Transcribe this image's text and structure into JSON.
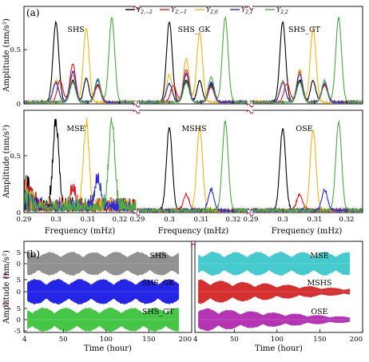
{
  "figure": {
    "panel_a_label": "(a)",
    "panel_b_label": "(b)"
  },
  "chart_data": [
    {
      "type": "line",
      "panel": "(a) top",
      "ylabel": "Amplitude (nm/s²)",
      "ylim": [
        0,
        0.9
      ],
      "yticks": [
        "0",
        "0.5"
      ],
      "legend": [
        "Y2,−2",
        "Y2,−1",
        "Y2,0",
        "Y2,1",
        "Y2,2"
      ],
      "legend_placement": "top",
      "series_colors": [
        "#000000",
        "#e8161c",
        "#f2b418",
        "#2a2ad8",
        "#4ea646"
      ],
      "subplots": [
        {
          "title": "SHS",
          "peaks": {
            "Y2,−2": [
              0.74,
              0.22
            ],
            "Y2,−1": [
              0.2,
              0.35,
              0.15
            ],
            "Y2,0": [
              0.68,
              0.25,
              0.2
            ],
            "Y2,1": [
              0.18,
              0.28,
              0.2
            ],
            "Y2,2": [
              0.78,
              0.22
            ]
          }
        },
        {
          "title": "SHS_GK",
          "peaks": {
            "Y2,−2": [
              0.74,
              0.2
            ],
            "Y2,−1": [
              0.15,
              0.3,
              0.14
            ],
            "Y2,0": [
              0.64,
              0.4,
              0.25
            ],
            "Y2,1": [
              0.17,
              0.26,
              0.18
            ],
            "Y2,2": [
              0.78,
              0.23
            ]
          }
        },
        {
          "title": "SHS_GT",
          "peaks": {
            "Y2,−2": [
              0.74,
              0.2
            ],
            "Y2,−1": [
              0.17,
              0.28,
              0.16
            ],
            "Y2,0": [
              0.68,
              0.3,
              0.2
            ],
            "Y2,1": [
              0.18,
              0.26,
              0.18
            ],
            "Y2,2": [
              0.78,
              0.2
            ]
          }
        }
      ]
    },
    {
      "type": "line",
      "panel": "(a) bottom",
      "ylabel": "Amplitude (nm/s²)",
      "xlabel": "Frequency (mHz)",
      "ylim": [
        0,
        0.9
      ],
      "yticks": [
        "0",
        "0.5"
      ],
      "xticks": [
        "0.29",
        "0.3",
        "0.31",
        "0.32"
      ],
      "x_range": [
        0.29,
        0.325
      ],
      "subplots": [
        {
          "title": "MSE",
          "peaks": {
            "Y2,−2": 0.75,
            "Y2,−1": 0.16,
            "Y2,0": 0.74,
            "Y2,1": 0.24,
            "Y2,2": 0.78
          }
        },
        {
          "title": "MSHS",
          "peaks": {
            "Y2,−2": 0.73,
            "Y2,−1": 0.14,
            "Y2,0": 0.73,
            "Y2,1": 0.18,
            "Y2,2": 0.78
          }
        },
        {
          "title": "OSE",
          "peaks": {
            "Y2,−2": 0.72,
            "Y2,−1": 0.14,
            "Y2,0": 0.71,
            "Y2,1": 0.18,
            "Y2,2": 0.78
          }
        }
      ]
    },
    {
      "type": "line",
      "panel": "(b)",
      "ylabel": "Amplitude (nm/s²)",
      "xlabel": "Time (hour)",
      "x_range": [
        4,
        200
      ],
      "xticks": [
        "4",
        "50",
        "100",
        "150",
        "200"
      ],
      "yticks": [
        "5",
        "0",
        "-5"
      ],
      "subplots": [
        {
          "title": "SHS",
          "color": "#8c8c8c"
        },
        {
          "title": "MSE",
          "color": "#3cc9cc"
        },
        {
          "title": "SHS_GK",
          "color": "#1a1ae6"
        },
        {
          "title": "MSHS",
          "color": "#d42424"
        },
        {
          "title": "SHS_GT",
          "color": "#3dc43d"
        },
        {
          "title": "OSE",
          "color": "#b02ab0"
        }
      ]
    }
  ]
}
